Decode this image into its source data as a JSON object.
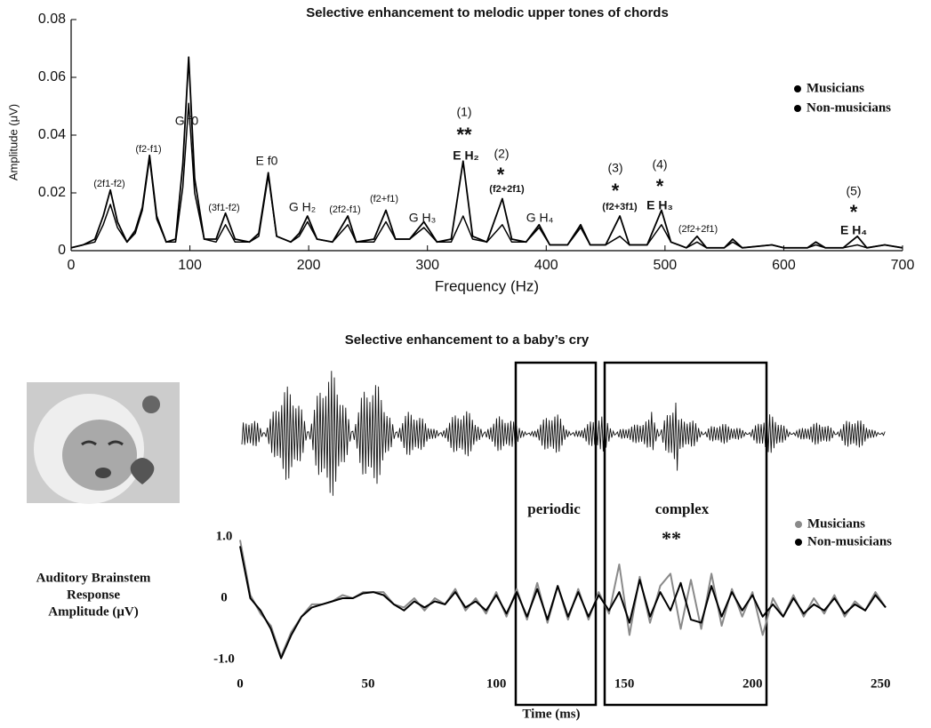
{
  "chart_data": [
    {
      "type": "line",
      "title": "Selective enhancement to melodic upper tones of chords",
      "xlabel": "Frequency (Hz)",
      "ylabel": "Amplitude (μV)",
      "xlim": [
        0,
        700
      ],
      "ylim": [
        0,
        0.08
      ],
      "xticks": [
        0,
        100,
        200,
        300,
        400,
        500,
        600,
        700
      ],
      "yticks": [
        0,
        0.02,
        0.04,
        0.06,
        0.08
      ],
      "legend": "upper right",
      "x": [
        0,
        10,
        20,
        27,
        33,
        39,
        47,
        54,
        60,
        66,
        72,
        80,
        88,
        94,
        99,
        104,
        112,
        122,
        130,
        138,
        150,
        158,
        166,
        173,
        185,
        192,
        199,
        207,
        220,
        233,
        240,
        255,
        265,
        273,
        285,
        297,
        308,
        320,
        330,
        338,
        350,
        363,
        371,
        383,
        394,
        403,
        418,
        429,
        437,
        450,
        462,
        470,
        485,
        497,
        505,
        518,
        527,
        535,
        550,
        557,
        565,
        590,
        600,
        620,
        627,
        635,
        650,
        662,
        670,
        685,
        700
      ],
      "series": [
        {
          "name": "Musicians",
          "color": "#000000",
          "values": [
            0.001,
            0.002,
            0.004,
            0.012,
            0.021,
            0.01,
            0.003,
            0.007,
            0.015,
            0.033,
            0.012,
            0.003,
            0.004,
            0.03,
            0.067,
            0.025,
            0.004,
            0.004,
            0.013,
            0.004,
            0.003,
            0.006,
            0.027,
            0.005,
            0.003,
            0.006,
            0.012,
            0.004,
            0.003,
            0.012,
            0.003,
            0.004,
            0.014,
            0.004,
            0.004,
            0.01,
            0.003,
            0.004,
            0.031,
            0.005,
            0.003,
            0.018,
            0.004,
            0.003,
            0.009,
            0.002,
            0.002,
            0.009,
            0.002,
            0.002,
            0.012,
            0.002,
            0.002,
            0.014,
            0.003,
            0.001,
            0.005,
            0.001,
            0.001,
            0.004,
            0.001,
            0.002,
            0.001,
            0.001,
            0.003,
            0.001,
            0.001,
            0.005,
            0.001,
            0.002,
            0.001
          ]
        },
        {
          "name": "Non-musicians",
          "color": "#000000",
          "values": [
            0.001,
            0.002,
            0.003,
            0.009,
            0.016,
            0.008,
            0.003,
            0.006,
            0.014,
            0.032,
            0.011,
            0.003,
            0.003,
            0.022,
            0.051,
            0.02,
            0.004,
            0.003,
            0.009,
            0.003,
            0.003,
            0.005,
            0.026,
            0.005,
            0.003,
            0.005,
            0.01,
            0.004,
            0.003,
            0.009,
            0.003,
            0.003,
            0.01,
            0.004,
            0.004,
            0.008,
            0.003,
            0.003,
            0.012,
            0.004,
            0.003,
            0.009,
            0.003,
            0.003,
            0.008,
            0.002,
            0.002,
            0.008,
            0.002,
            0.002,
            0.005,
            0.002,
            0.002,
            0.009,
            0.003,
            0.001,
            0.003,
            0.001,
            0.001,
            0.003,
            0.001,
            0.002,
            0.001,
            0.001,
            0.002,
            0.001,
            0.001,
            0.002,
            0.001,
            0.002,
            0.001
          ]
        }
      ],
      "annotations": [
        "(2f1-f2)",
        "(f2-f1)",
        "G f0",
        "(3f1-f2)",
        "E f0",
        "G H₂",
        "(2f2-f1)",
        "(f2+f1)",
        "G H₃",
        "(1)",
        "**",
        "E H₂",
        "(2)",
        "*",
        "(f2+2f1)",
        "G H₄",
        "(3)",
        "*",
        "(f2+3f1)",
        "(4)",
        "*",
        "E H₃",
        "(2f2+2f1)",
        "(5)",
        "*",
        "E H₄"
      ]
    },
    {
      "type": "line",
      "title": "Selective enhancement to a baby’s cry",
      "xlabel": "Time (ms)",
      "ylabel": [
        "Auditory Brainstem",
        "Response",
        "Amplitude (μV)"
      ],
      "xlim": [
        0,
        252
      ],
      "ylim": [
        -1,
        1
      ],
      "xticks": [
        0,
        50,
        100,
        150,
        200,
        250
      ],
      "yticks": [
        {
          "value": -1,
          "label": "-1.0"
        },
        0,
        {
          "value": 1,
          "label": "1.0"
        }
      ],
      "legend": "right",
      "x": [
        0,
        4,
        8,
        12,
        16,
        20,
        24,
        28,
        32,
        36,
        40,
        44,
        48,
        52,
        56,
        60,
        64,
        68,
        72,
        76,
        80,
        84,
        88,
        92,
        96,
        100,
        104,
        108,
        112,
        116,
        120,
        124,
        128,
        132,
        136,
        140,
        144,
        148,
        152,
        156,
        160,
        164,
        168,
        172,
        176,
        180,
        184,
        188,
        192,
        196,
        200,
        204,
        208,
        212,
        216,
        220,
        224,
        228,
        232,
        236,
        240,
        244,
        248,
        252
      ],
      "series": [
        {
          "name": "Musicians",
          "color": "#8a8a8a",
          "values": [
            0.95,
            0.05,
            -0.25,
            -0.45,
            -0.95,
            -0.55,
            -0.3,
            -0.1,
            -0.1,
            -0.05,
            0.05,
            0.0,
            0.1,
            0.1,
            0.1,
            -0.1,
            -0.15,
            0.0,
            -0.2,
            0.0,
            -0.1,
            0.15,
            -0.2,
            0.0,
            -0.25,
            0.1,
            -0.3,
            0.15,
            -0.35,
            0.25,
            -0.4,
            0.2,
            -0.35,
            0.15,
            -0.35,
            0.1,
            -0.25,
            0.55,
            -0.6,
            0.35,
            -0.4,
            0.2,
            0.4,
            -0.5,
            0.3,
            -0.5,
            0.4,
            -0.45,
            0.15,
            -0.3,
            0.1,
            -0.6,
            0.0,
            -0.3,
            0.05,
            -0.3,
            0.0,
            -0.25,
            0.05,
            -0.3,
            -0.05,
            -0.2,
            0.1,
            -0.15
          ]
        },
        {
          "name": "Non-musicians",
          "color": "#000000",
          "values": [
            0.85,
            0.0,
            -0.2,
            -0.5,
            -0.98,
            -0.6,
            -0.3,
            -0.15,
            -0.1,
            -0.05,
            0.0,
            0.0,
            0.08,
            0.1,
            0.05,
            -0.1,
            -0.2,
            -0.05,
            -0.15,
            -0.05,
            -0.1,
            0.1,
            -0.15,
            -0.05,
            -0.2,
            0.05,
            -0.25,
            0.1,
            -0.3,
            0.15,
            -0.35,
            0.2,
            -0.3,
            0.1,
            -0.3,
            0.05,
            -0.2,
            0.1,
            -0.4,
            0.3,
            -0.3,
            0.1,
            -0.2,
            0.25,
            -0.35,
            -0.4,
            0.2,
            -0.3,
            0.1,
            -0.2,
            0.05,
            -0.3,
            -0.1,
            -0.3,
            0.0,
            -0.25,
            -0.1,
            -0.2,
            0.0,
            -0.25,
            -0.1,
            -0.2,
            0.05,
            -0.15
          ]
        }
      ],
      "annotations": [
        "periodic",
        "complex",
        "**"
      ]
    }
  ]
}
